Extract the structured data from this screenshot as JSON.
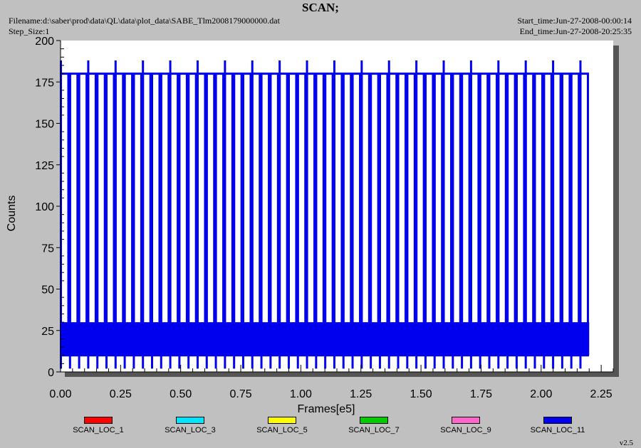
{
  "header": {
    "title": "SCAN;",
    "filename": "Filename:d:\\saber\\prod\\data\\QL\\data\\plot_data\\SABE_Tlm2008179000000.dat",
    "step_size": "Step_Size:1",
    "start_time": "Start_time:Jun-27-2008-00:00:14",
    "end_time": "End_time:Jun-27-2008-20:25:35"
  },
  "footer": {
    "version": "v2.5"
  },
  "chart_data": {
    "type": "line",
    "title": "SCAN;",
    "xlabel": "Frames[e5]",
    "ylabel": "Counts",
    "xlim": [
      0,
      2.3
    ],
    "ylim": [
      0,
      200
    ],
    "x_ticks": [
      "0.00",
      "0.25",
      "0.50",
      "0.75",
      "1.00",
      "1.25",
      "1.50",
      "1.75",
      "2.00",
      "2.25"
    ],
    "y_ticks": [
      "0",
      "25",
      "50",
      "75",
      "100",
      "125",
      "150",
      "175",
      "200"
    ],
    "grid": false,
    "legend_position": "bottom",
    "series": [
      {
        "name": "SCAN_LOC_1",
        "color": "#ff0000"
      },
      {
        "name": "SCAN_LOC_3",
        "color": "#00e5ff"
      },
      {
        "name": "SCAN_LOC_5",
        "color": "#ffff00"
      },
      {
        "name": "SCAN_LOC_7",
        "color": "#00cc00"
      },
      {
        "name": "SCAN_LOC_9",
        "color": "#ff66cc"
      },
      {
        "name": "SCAN_LOC_11",
        "color": "#0000ee",
        "x_range": [
          0,
          2.2
        ],
        "baseline_band": [
          10,
          30
        ],
        "scan_peak_low": 180,
        "scan_peak_high": 188,
        "scan_count": 58,
        "scan_floor": 2
      }
    ]
  }
}
